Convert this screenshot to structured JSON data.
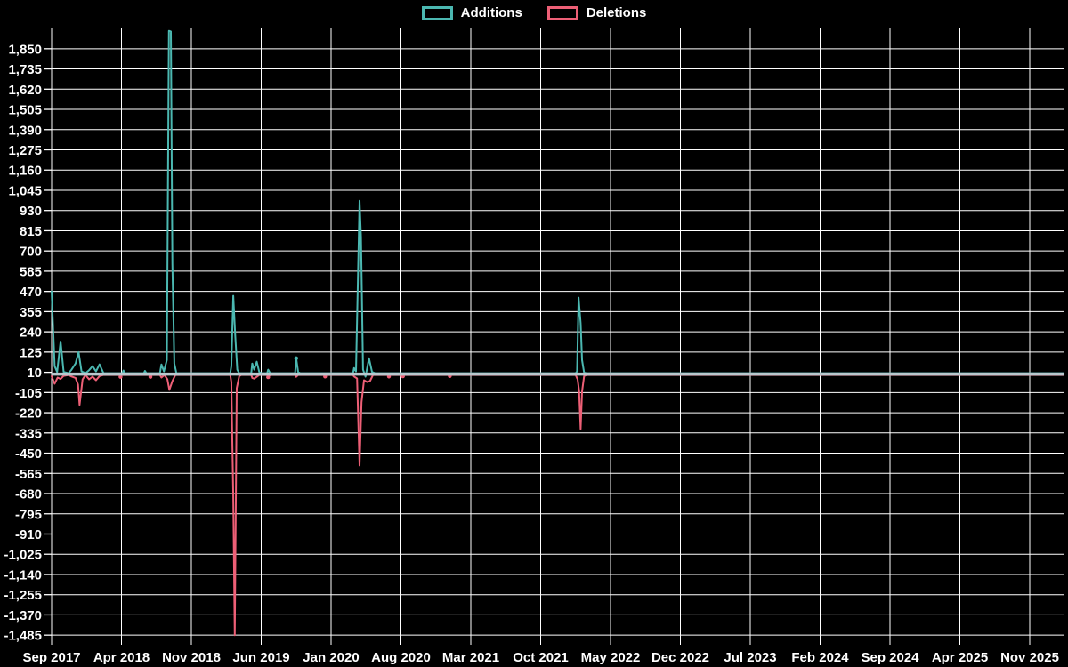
{
  "legend": {
    "items": [
      {
        "label": "Additions",
        "color": "#4bb8b1"
      },
      {
        "label": "Deletions",
        "color": "#ed5f76"
      }
    ]
  },
  "chart_data": {
    "type": "line",
    "x_unit": "months since Sep 2017 (weekly samples)",
    "x_axis": {
      "months_per_tick": 7,
      "tick_labels": [
        "Sep 2017",
        "Apr 2018",
        "Nov 2018",
        "Jun 2019",
        "Jan 2020",
        "Aug 2020",
        "Mar 2021",
        "Oct 2021",
        "May 2022",
        "Dec 2022",
        "Jul 2023",
        "Feb 2024",
        "Sep 2024",
        "Apr 2025",
        "Nov 2025"
      ]
    },
    "y_axis": {
      "min": -1485,
      "max": 1850,
      "step": 115,
      "tick_values": [
        1850,
        1735,
        1620,
        1505,
        1390,
        1275,
        1160,
        1045,
        930,
        815,
        700,
        585,
        470,
        355,
        240,
        125,
        10,
        -105,
        -220,
        -335,
        -450,
        -565,
        -680,
        -795,
        -910,
        -1025,
        -1140,
        -1255,
        -1370,
        -1485
      ],
      "tick_labels": [
        "1,850",
        "1,735",
        "1,620",
        "1,505",
        "1,390",
        "1,275",
        "1,160",
        "1,045",
        "930",
        "815",
        "700",
        "585",
        "470",
        "355",
        "240",
        "125",
        "10",
        "-105",
        "-220",
        "-335",
        "-450",
        "-565",
        "-680",
        "-795",
        "-910",
        "-1,025",
        "-1,140",
        "-1,255",
        "-1,370",
        "-1,485"
      ],
      "hidden_gridline_value": 10
    },
    "zero_line": {
      "value": 0,
      "color": "#b9c8ce"
    },
    "grid": {
      "color": "#ffffff",
      "background": "#000000",
      "text_color": "#ffffff"
    },
    "series": [
      {
        "name": "Additions",
        "color": "#4bb8b1",
        "points": [
          [
            0,
            470
          ],
          [
            0.3,
            45
          ],
          [
            0.55,
            12
          ],
          [
            0.9,
            185
          ],
          [
            1.2,
            12
          ],
          [
            1.7,
            5
          ],
          [
            2.0,
            25
          ],
          [
            2.4,
            60
          ],
          [
            2.7,
            125
          ],
          [
            3.0,
            15
          ],
          [
            3.4,
            5
          ],
          [
            3.75,
            22
          ],
          [
            4.1,
            45
          ],
          [
            4.45,
            15
          ],
          [
            4.8,
            55
          ],
          [
            5.2,
            5
          ],
          [
            7.1,
            5
          ],
          [
            7.2,
            20
          ],
          [
            7.35,
            5
          ],
          [
            9.25,
            5
          ],
          [
            9.35,
            18
          ],
          [
            9.5,
            5
          ],
          [
            10.85,
            5
          ],
          [
            11.0,
            55
          ],
          [
            11.25,
            15
          ],
          [
            11.55,
            80
          ],
          [
            11.75,
            1952
          ],
          [
            11.95,
            1948
          ],
          [
            12.1,
            625
          ],
          [
            12.3,
            60
          ],
          [
            12.5,
            5
          ],
          [
            17.9,
            5
          ],
          [
            18.0,
            45
          ],
          [
            18.2,
            445
          ],
          [
            18.4,
            220
          ],
          [
            18.6,
            25
          ],
          [
            18.8,
            5
          ],
          [
            20.0,
            5
          ],
          [
            20.1,
            60
          ],
          [
            20.3,
            25
          ],
          [
            20.55,
            70
          ],
          [
            20.8,
            12
          ],
          [
            21.0,
            5
          ],
          [
            21.6,
            5
          ],
          [
            21.7,
            25
          ],
          [
            21.9,
            5
          ],
          [
            24.4,
            5
          ],
          [
            24.5,
            90
          ],
          [
            24.7,
            12
          ],
          [
            24.9,
            5
          ],
          [
            30.2,
            5
          ],
          [
            30.3,
            35
          ],
          [
            30.5,
            15
          ],
          [
            30.85,
            985
          ],
          [
            31.0,
            780
          ],
          [
            31.2,
            25
          ],
          [
            31.45,
            -15
          ],
          [
            31.8,
            90
          ],
          [
            32.1,
            12
          ],
          [
            32.4,
            5
          ],
          [
            52.5,
            5
          ],
          [
            52.65,
            15
          ],
          [
            52.8,
            435
          ],
          [
            53.0,
            290
          ],
          [
            53.15,
            80
          ],
          [
            53.35,
            8
          ],
          [
            53.6,
            5
          ],
          [
            101.4,
            5
          ]
        ],
        "markers": [
          [
            24.5,
            90
          ]
        ]
      },
      {
        "name": "Deletions",
        "color": "#ed5f76",
        "points": [
          [
            0,
            -12
          ],
          [
            0.3,
            -55
          ],
          [
            0.6,
            -20
          ],
          [
            0.9,
            -28
          ],
          [
            1.2,
            -10
          ],
          [
            1.7,
            -5
          ],
          [
            2.0,
            -14
          ],
          [
            2.4,
            -22
          ],
          [
            2.65,
            -60
          ],
          [
            2.8,
            -175
          ],
          [
            3.1,
            -30
          ],
          [
            3.4,
            -5
          ],
          [
            3.75,
            -30
          ],
          [
            4.1,
            -15
          ],
          [
            4.45,
            -35
          ],
          [
            4.8,
            -12
          ],
          [
            5.2,
            -5
          ],
          [
            6.8,
            -5
          ],
          [
            6.9,
            -16
          ],
          [
            7.05,
            -5
          ],
          [
            9.8,
            -5
          ],
          [
            9.9,
            -16
          ],
          [
            10.05,
            -5
          ],
          [
            10.85,
            -5
          ],
          [
            11.0,
            -20
          ],
          [
            11.3,
            -5
          ],
          [
            11.6,
            -30
          ],
          [
            11.8,
            -90
          ],
          [
            12.1,
            -40
          ],
          [
            12.4,
            -5
          ],
          [
            17.9,
            -5
          ],
          [
            18.0,
            -45
          ],
          [
            18.2,
            -700
          ],
          [
            18.35,
            -1485
          ],
          [
            18.55,
            -80
          ],
          [
            18.8,
            -12
          ],
          [
            19.0,
            -5
          ],
          [
            20.0,
            -5
          ],
          [
            20.1,
            -22
          ],
          [
            20.3,
            -26
          ],
          [
            20.55,
            -16
          ],
          [
            20.8,
            -5
          ],
          [
            21.6,
            -5
          ],
          [
            21.7,
            -18
          ],
          [
            21.9,
            -5
          ],
          [
            24.4,
            -5
          ],
          [
            24.5,
            -16
          ],
          [
            24.7,
            -5
          ],
          [
            27.3,
            -5
          ],
          [
            27.4,
            -14
          ],
          [
            27.55,
            -5
          ],
          [
            30.2,
            -5
          ],
          [
            30.3,
            -14
          ],
          [
            30.6,
            -25
          ],
          [
            30.85,
            -520
          ],
          [
            31.05,
            -160
          ],
          [
            31.3,
            -35
          ],
          [
            31.6,
            -45
          ],
          [
            31.9,
            -40
          ],
          [
            32.2,
            -5
          ],
          [
            33.7,
            -5
          ],
          [
            33.8,
            -14
          ],
          [
            33.95,
            -5
          ],
          [
            35.1,
            -5
          ],
          [
            35.2,
            -13
          ],
          [
            35.35,
            -5
          ],
          [
            39.8,
            -5
          ],
          [
            39.9,
            -11
          ],
          [
            40.05,
            -5
          ],
          [
            52.5,
            -5
          ],
          [
            52.7,
            -30
          ],
          [
            52.85,
            -95
          ],
          [
            53.0,
            -312
          ],
          [
            53.15,
            -100
          ],
          [
            53.35,
            -12
          ],
          [
            53.6,
            -5
          ],
          [
            101.4,
            -5
          ]
        ],
        "markers": [
          [
            6.9,
            -16
          ],
          [
            9.9,
            -16
          ],
          [
            21.7,
            -18
          ],
          [
            27.4,
            -14
          ],
          [
            33.8,
            -14
          ],
          [
            35.2,
            -13
          ],
          [
            39.9,
            -11
          ]
        ]
      }
    ]
  }
}
